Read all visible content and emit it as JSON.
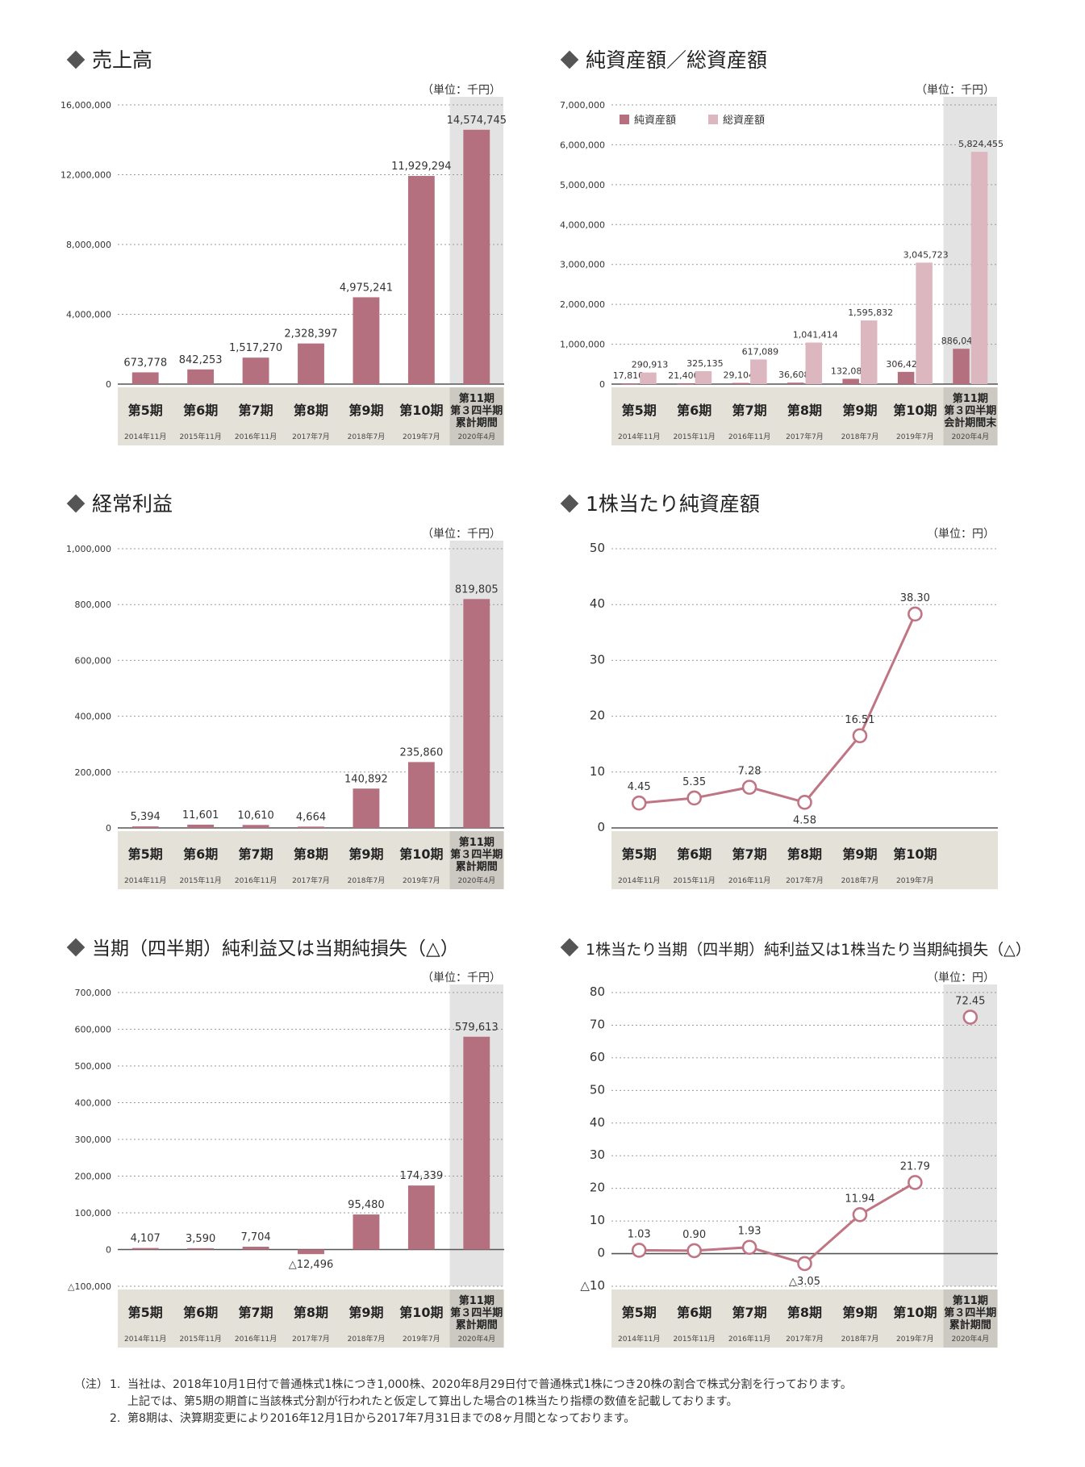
{
  "colors": {
    "bar": "#b5707f",
    "bar_light": "#ddb7c0",
    "line": "#c07585",
    "highlight": "#e3e3e3",
    "highlight_label": "#cbc9c1",
    "category_band": "#e4e1d9",
    "grid": "#9a9a9a",
    "text": "#333333"
  },
  "chart_data": [
    {
      "id": "sales",
      "type": "bar",
      "title": "売上高",
      "unit": "（単位：千円）",
      "categories": [
        "第5期",
        "第6期",
        "第7期",
        "第8期",
        "第9期",
        "第10期",
        "第11期\n第３四半期\n累計期間"
      ],
      "dates": [
        "2014年11月",
        "2015年11月",
        "2016年11月",
        "2017年7月",
        "2018年7月",
        "2019年7月",
        "2020年4月"
      ],
      "series": [
        {
          "values": [
            673778,
            842253,
            1517270,
            2328397,
            4975241,
            11929294,
            14574745
          ]
        }
      ],
      "value_labels": [
        "673,778",
        "842,253",
        "1,517,270",
        "2,328,397",
        "4,975,241",
        "11,929,294",
        "14,574,745"
      ],
      "yticks": [
        0,
        4000000,
        8000000,
        12000000,
        16000000
      ],
      "ytick_labels": [
        "0",
        "4,000,000",
        "8,000,000",
        "12,000,000",
        "16,000,000"
      ],
      "ylim": [
        0,
        16000000
      ],
      "highlight_last": true
    },
    {
      "id": "assets",
      "type": "bar",
      "title": "純資産額／総資産額",
      "unit": "（単位：千円）",
      "legend": [
        "純資産額",
        "総資産額"
      ],
      "legend_position": "top-left",
      "categories": [
        "第5期",
        "第6期",
        "第7期",
        "第8期",
        "第9期",
        "第10期",
        "第11期\n第３四半期\n会計期間末"
      ],
      "dates": [
        "2014年11月",
        "2015年11月",
        "2016年11月",
        "2017年7月",
        "2018年7月",
        "2019年7月",
        "2020年4月"
      ],
      "series": [
        {
          "name": "純資産額",
          "values": [
            17810,
            21400,
            29104,
            36608,
            132088,
            306428,
            886042
          ],
          "labels": [
            "17,810",
            "21,400",
            "29,104",
            "36,608",
            "132,088",
            "306,428",
            "886,042"
          ]
        },
        {
          "name": "総資産額",
          "values": [
            290913,
            325135,
            617089,
            1041414,
            1595832,
            3045723,
            5824455
          ],
          "labels": [
            "290,913",
            "325,135",
            "617,089",
            "1,041,414",
            "1,595,832",
            "3,045,723",
            "5,824,455"
          ]
        }
      ],
      "yticks": [
        0,
        1000000,
        2000000,
        3000000,
        4000000,
        5000000,
        6000000,
        7000000
      ],
      "ytick_labels": [
        "0",
        "1,000,000",
        "2,000,000",
        "3,000,000",
        "4,000,000",
        "5,000,000",
        "6,000,000",
        "7,000,000"
      ],
      "ylim": [
        0,
        7000000
      ],
      "highlight_last": true
    },
    {
      "id": "ordinary",
      "type": "bar",
      "title": "経常利益",
      "unit": "（単位：千円）",
      "categories": [
        "第5期",
        "第6期",
        "第7期",
        "第8期",
        "第9期",
        "第10期",
        "第11期\n第３四半期\n累計期間"
      ],
      "dates": [
        "2014年11月",
        "2015年11月",
        "2016年11月",
        "2017年7月",
        "2018年7月",
        "2019年7月",
        "2020年4月"
      ],
      "series": [
        {
          "values": [
            5394,
            11601,
            10610,
            4664,
            140892,
            235860,
            819805
          ]
        }
      ],
      "value_labels": [
        "5,394",
        "11,601",
        "10,610",
        "4,664",
        "140,892",
        "235,860",
        "819,805"
      ],
      "yticks": [
        0,
        200000,
        400000,
        600000,
        800000,
        1000000
      ],
      "ytick_labels": [
        "0",
        "200,000",
        "400,000",
        "600,000",
        "800,000",
        "1,000,000"
      ],
      "ylim": [
        0,
        1000000
      ],
      "highlight_last": true
    },
    {
      "id": "bps",
      "type": "line",
      "title": "1株当たり純資産額",
      "unit": "（単位：円）",
      "categories": [
        "第5期",
        "第6期",
        "第7期",
        "第8期",
        "第9期",
        "第10期",
        ""
      ],
      "dates": [
        "2014年11月",
        "2015年11月",
        "2016年11月",
        "2017年7月",
        "2018年7月",
        "2019年7月",
        ""
      ],
      "series": [
        {
          "values": [
            4.45,
            5.35,
            7.28,
            4.58,
            16.51,
            38.3,
            null
          ]
        }
      ],
      "value_labels": [
        "4.45",
        "5.35",
        "7.28",
        "4.58",
        "16.51",
        "38.30",
        ""
      ],
      "yticks": [
        0,
        10,
        20,
        30,
        40,
        50
      ],
      "ytick_labels": [
        "0",
        "10",
        "20",
        "30",
        "40",
        "50"
      ],
      "ylim": [
        0,
        50
      ],
      "highlight_last": false
    },
    {
      "id": "net",
      "type": "bar",
      "title": "当期（四半期）純利益又は当期純損失（△）",
      "unit": "（単位：千円）",
      "categories": [
        "第5期",
        "第6期",
        "第7期",
        "第8期",
        "第9期",
        "第10期",
        "第11期\n第３四半期\n累計期間"
      ],
      "dates": [
        "2014年11月",
        "2015年11月",
        "2016年11月",
        "2017年7月",
        "2018年7月",
        "2019年7月",
        "2020年4月"
      ],
      "series": [
        {
          "values": [
            4107,
            3590,
            7704,
            -12496,
            95480,
            174339,
            579613
          ]
        }
      ],
      "value_labels": [
        "4,107",
        "3,590",
        "7,704",
        "△12,496",
        "95,480",
        "174,339",
        "579,613"
      ],
      "yticks": [
        -100000,
        0,
        100000,
        200000,
        300000,
        400000,
        500000,
        600000,
        700000
      ],
      "ytick_labels": [
        "△100,000",
        "0",
        "100,000",
        "200,000",
        "300,000",
        "400,000",
        "500,000",
        "600,000",
        "700,000"
      ],
      "ylim": [
        -100000,
        700000
      ],
      "highlight_last": true
    },
    {
      "id": "eps",
      "type": "line",
      "title": "1株当たり当期（四半期）純利益又は1株当たり当期純損失（△）",
      "unit": "（単位：円）",
      "categories": [
        "第5期",
        "第6期",
        "第7期",
        "第8期",
        "第9期",
        "第10期",
        "第11期\n第３四半期\n累計期間"
      ],
      "dates": [
        "2014年11月",
        "2015年11月",
        "2016年11月",
        "2017年7月",
        "2018年7月",
        "2019年7月",
        "2020年4月"
      ],
      "series": [
        {
          "values": [
            1.03,
            0.9,
            1.93,
            -3.05,
            11.94,
            21.79,
            72.45
          ]
        }
      ],
      "value_labels": [
        "1.03",
        "0.90",
        "1.93",
        "△3.05",
        "11.94",
        "21.79",
        "72.45"
      ],
      "line_break_before_last": true,
      "yticks": [
        -10,
        0,
        10,
        20,
        30,
        40,
        50,
        60,
        70,
        80
      ],
      "ytick_labels": [
        "△10",
        "0",
        "10",
        "20",
        "30",
        "40",
        "50",
        "60",
        "70",
        "80"
      ],
      "ylim": [
        -10,
        80
      ],
      "highlight_last": true
    }
  ],
  "notes": {
    "label": "（注）",
    "items": [
      {
        "num": "1.",
        "lines": [
          "当社は、2018年10月1日付で普通株式1株につき1,000株、2020年8月29日付で普通株式1株につき20株の割合で株式分割を行っております。",
          "上記では、第5期の期首に当該株式分割が行われたと仮定して算出した場合の1株当たり指標の数値を記載しております。"
        ]
      },
      {
        "num": "2.",
        "lines": [
          "第8期は、決算期変更により2016年12月1日から2017年7月31日までの8ヶ月間となっております。"
        ]
      }
    ]
  }
}
